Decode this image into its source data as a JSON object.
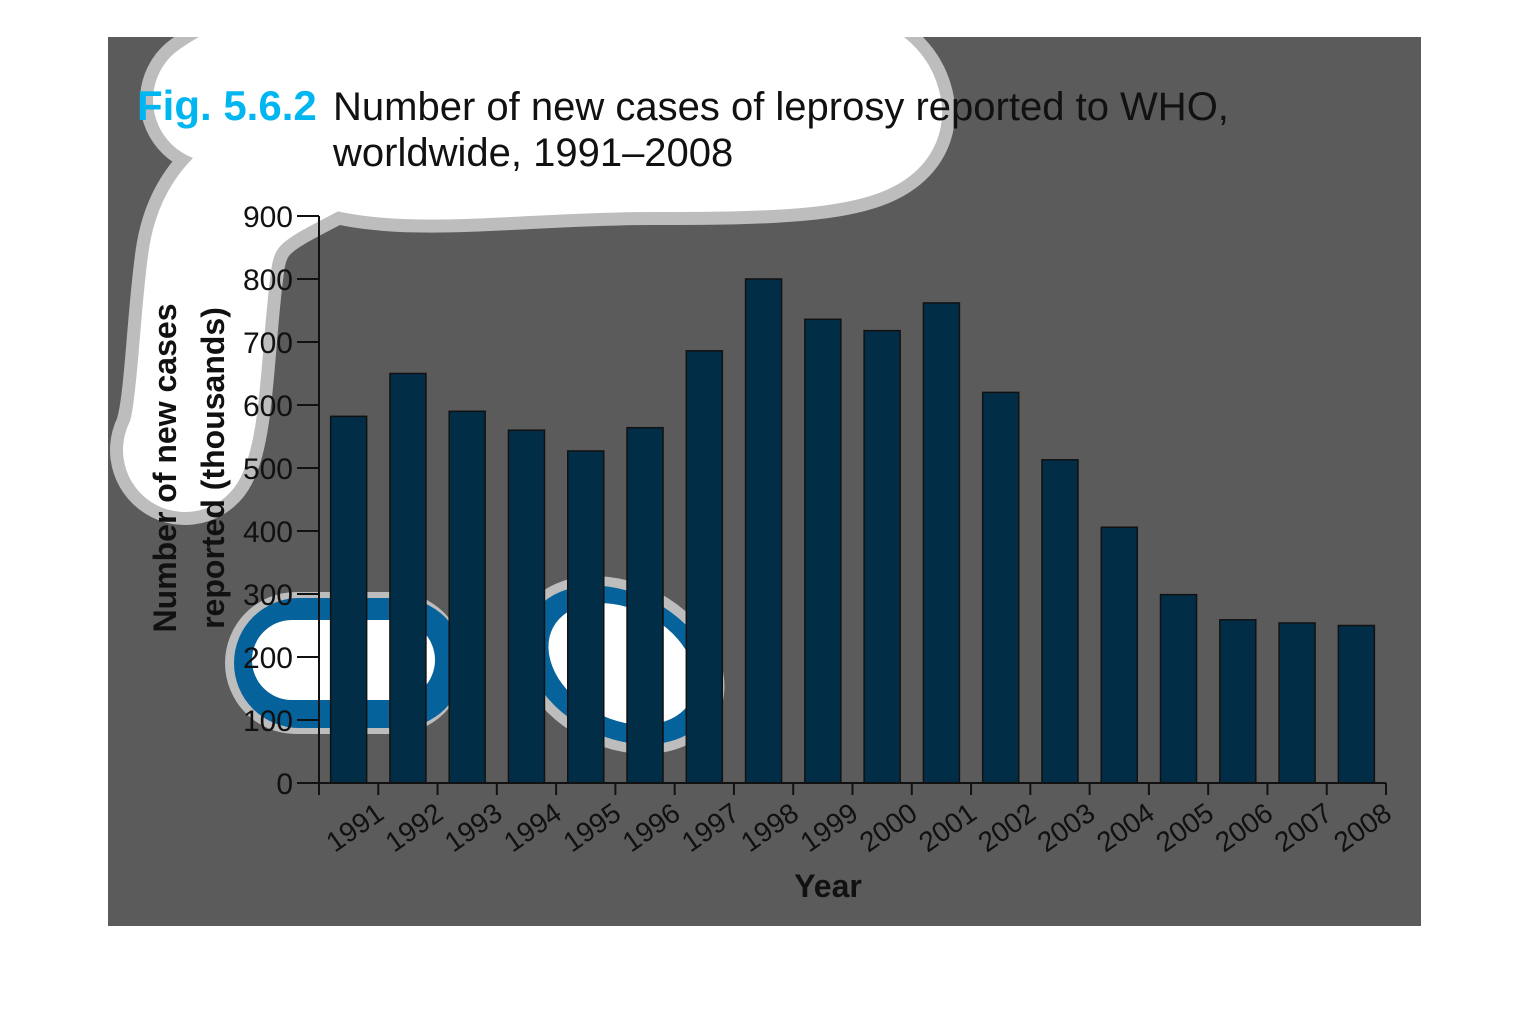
{
  "figure": {
    "label": "Fig. 5.6.2",
    "title_line1": "Number of new cases of leprosy reported to WHO,",
    "title_line2": "worldwide, 1991–2008"
  },
  "colors": {
    "background_panel": "#5b5b5b",
    "bar": "#022d47",
    "bar_outline": "#111111",
    "axis": "#111111",
    "text": "#111111",
    "label_accent": "#00b6f0",
    "highlight_light": "#00b6f0",
    "highlight_dark": "#06629a",
    "scribble": "#ffffff",
    "scribble_halo": "#bdbdbd"
  },
  "chart_data": {
    "type": "bar",
    "title": "Number of new cases of leprosy reported to WHO, worldwide, 1991–2008",
    "xlabel": "Year",
    "ylabel_line1": "Number of new cases",
    "ylabel_line2": "reported (thousands)",
    "categories": [
      "1991",
      "1992",
      "1993",
      "1994",
      "1995",
      "1996",
      "1997",
      "1998",
      "1999",
      "2000",
      "2001",
      "2002",
      "2003",
      "2004",
      "2005",
      "2006",
      "2007",
      "2008"
    ],
    "values": [
      582,
      650,
      590,
      560,
      527,
      564,
      686,
      800,
      736,
      718,
      762,
      620,
      513,
      406,
      299,
      259,
      254,
      250
    ],
    "ylim": [
      0,
      900
    ],
    "yticks": [
      0,
      100,
      200,
      300,
      400,
      500,
      600,
      700,
      800,
      900
    ],
    "grid": false,
    "legend": "none"
  }
}
